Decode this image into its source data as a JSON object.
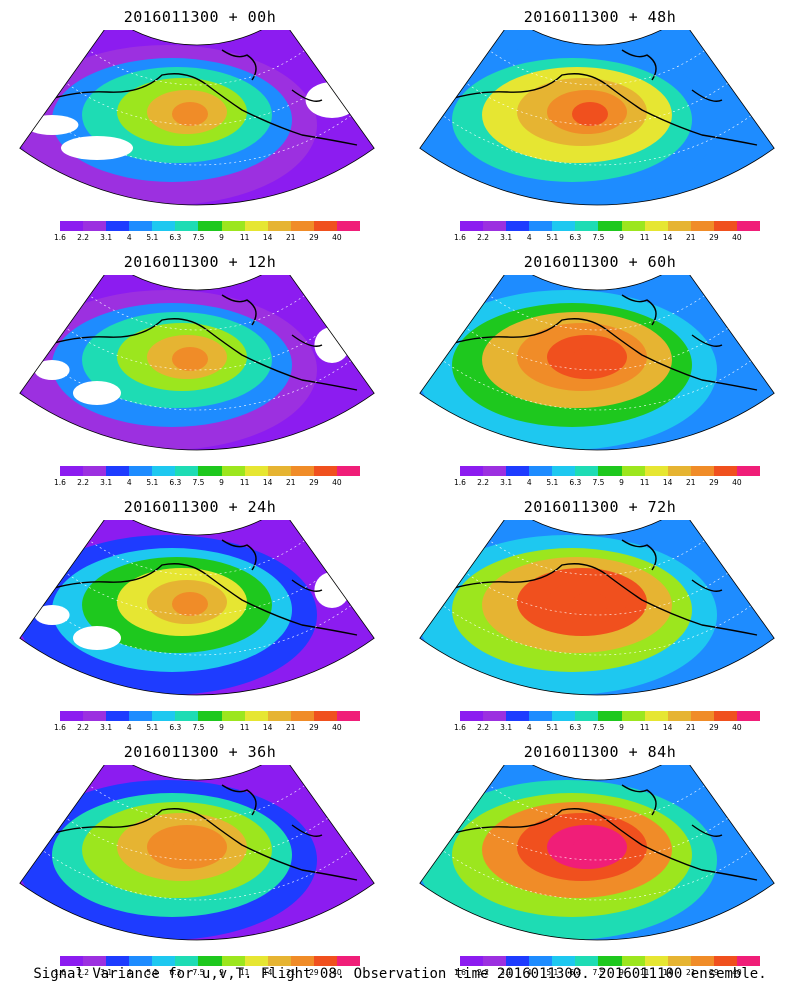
{
  "panels": [
    {
      "title": "2016011300 + 00h",
      "level": 0
    },
    {
      "title": "2016011300 + 48h",
      "level": 4
    },
    {
      "title": "2016011300 + 12h",
      "level": 1
    },
    {
      "title": "2016011300 + 60h",
      "level": 5
    },
    {
      "title": "2016011300 + 24h",
      "level": 2
    },
    {
      "title": "2016011300 + 72h",
      "level": 6
    },
    {
      "title": "2016011300 + 36h",
      "level": 3
    },
    {
      "title": "2016011300 + 84h",
      "level": 7
    }
  ],
  "colorbar": {
    "colors": [
      "#8c1cf0",
      "#9c30e0",
      "#1e3cff",
      "#1e8cff",
      "#1ec8f0",
      "#1edcb4",
      "#1ec81e",
      "#9ce61e",
      "#e6e632",
      "#e6b432",
      "#f08c28",
      "#f0501e",
      "#f01e78"
    ],
    "labels": [
      "1.6",
      "2.2",
      "3.1",
      "4",
      "5.1",
      "6.3",
      "7.5",
      "9",
      "11",
      "14",
      "21",
      "29",
      "40"
    ]
  },
  "caption": "Signal Variance for u,v,T. Flight 08. Observation time 2016011300. 2016011100 ensemble."
}
